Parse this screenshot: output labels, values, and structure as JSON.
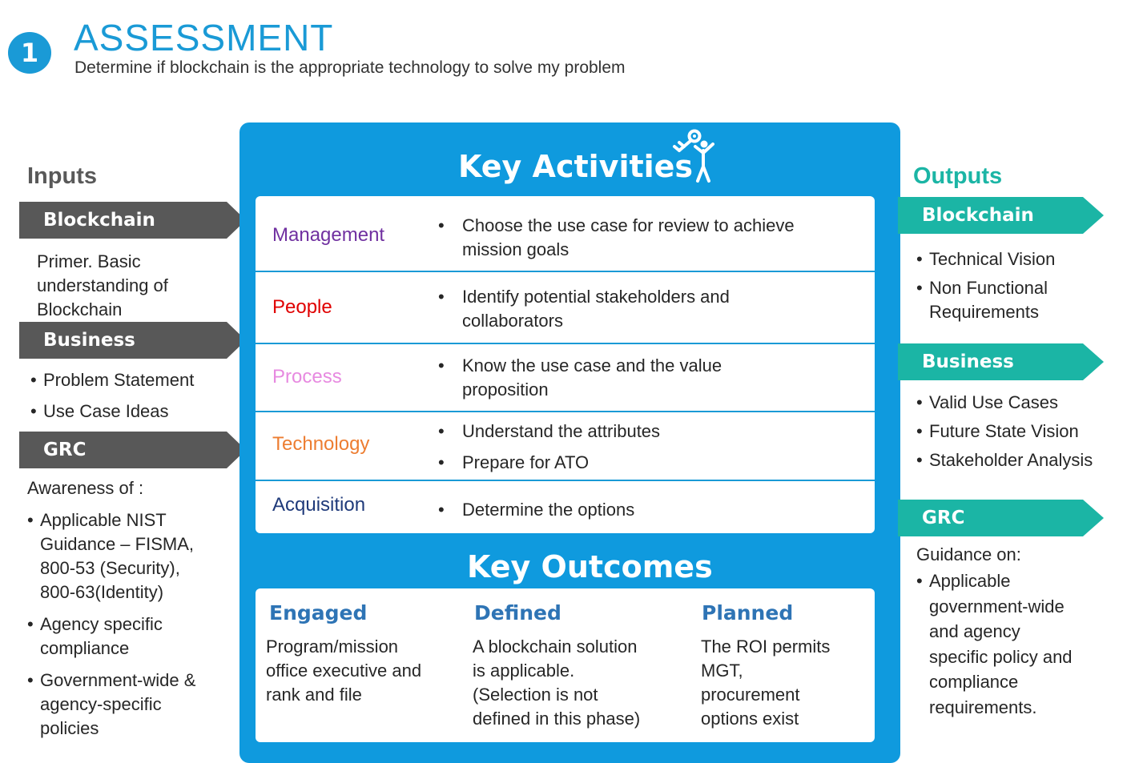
{
  "header": {
    "step_number": "1",
    "title": "ASSESSMENT",
    "subtitle": "Determine if blockchain is the appropriate technology to solve my problem"
  },
  "inputs": {
    "heading": "Inputs",
    "blockchain": {
      "label": "Blockchain",
      "text": [
        "Primer.  Basic",
        "understanding of",
        "Blockchain"
      ]
    },
    "business": {
      "label": "Business",
      "items": [
        "Problem Statement",
        "Use Case Ideas"
      ]
    },
    "grc": {
      "label": "GRC",
      "intro": "Awareness of :",
      "items": [
        [
          "Applicable NIST",
          "Guidance – FISMA,",
          "800-53 (Security),",
          "800-63(Identity)"
        ],
        [
          "Agency specific",
          "compliance"
        ],
        [
          "Government-wide &",
          "agency-specific",
          "policies"
        ]
      ]
    }
  },
  "key_activities": {
    "title": "Key Activities",
    "icon": "person-raising-key-icon",
    "rows": [
      {
        "label": "Management",
        "color": "#7030a0",
        "items": [
          [
            "Choose the use case for review to achieve",
            "mission goals"
          ]
        ]
      },
      {
        "label": "People",
        "color": "#e00000",
        "items": [
          [
            "Identify potential stakeholders and",
            "collaborators"
          ]
        ]
      },
      {
        "label": "Process",
        "color": "#e78ae0",
        "items": [
          [
            "Know the use case and the value",
            "proposition"
          ]
        ]
      },
      {
        "label": "Technology",
        "color": "#ed7d31",
        "items": [
          [
            "Understand the attributes"
          ],
          [
            "Prepare for ATO"
          ]
        ]
      },
      {
        "label": "Acquisition",
        "color": "#1f3a7a",
        "items": [
          [
            "Determine the options"
          ]
        ]
      }
    ]
  },
  "key_outcomes": {
    "title": "Key Outcomes",
    "columns": [
      {
        "heading": "Engaged",
        "text": [
          "Program/mission",
          "office executive and",
          "rank and file"
        ]
      },
      {
        "heading": "Defined",
        "text": [
          "A blockchain solution",
          "is applicable.",
          "(Selection is not",
          "defined in this phase)"
        ]
      },
      {
        "heading": "Planned",
        "text": [
          "The ROI permits",
          "MGT,",
          "procurement",
          "options exist"
        ]
      }
    ]
  },
  "outputs": {
    "heading": "Outputs",
    "blockchain": {
      "label": "Blockchain",
      "items": [
        [
          "Technical Vision"
        ],
        [
          "Non Functional",
          "Requirements"
        ]
      ]
    },
    "business": {
      "label": "Business",
      "items": [
        [
          "Valid Use Cases"
        ],
        [
          "Future State Vision"
        ],
        [
          "Stakeholder Analysis"
        ]
      ]
    },
    "grc": {
      "label": "GRC",
      "intro": "Guidance on:",
      "items": [
        [
          "Applicable",
          "government-wide",
          "and agency",
          "specific policy and",
          "compliance",
          "requirements."
        ]
      ]
    }
  },
  "colors": {
    "accent_blue": "#1a9ad6",
    "panel_blue": "#0f9ade",
    "input_gray": "#585858",
    "output_teal": "#1bb5a5",
    "outcome_heading": "#2e74b5"
  }
}
